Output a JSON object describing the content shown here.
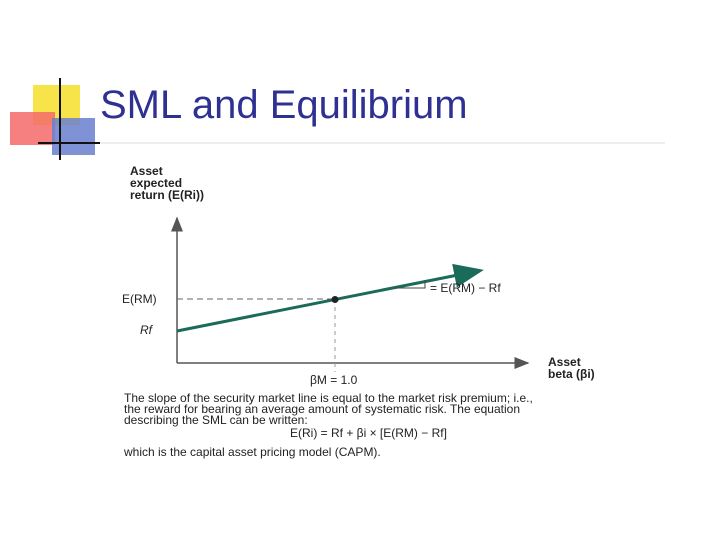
{
  "title": "SML and Equilibrium",
  "diagram": {
    "y_axis_label": [
      "Asset",
      "expected",
      "return (E(Ri))"
    ],
    "x_axis_label": [
      "Asset",
      "beta (βi)"
    ],
    "market_return_label": "E(RM)",
    "risk_free_label": "Rf",
    "slope_label": "= E(RM) − Rf",
    "market_beta_label": "βM = 1.0"
  },
  "caption": {
    "lines": [
      "The slope of the security market line is equal to the market risk premium; i.e.,",
      "the reward for bearing an average amount of systematic risk. The equation",
      "describing the SML can be written:"
    ],
    "equation": "E(Ri) = Rf + βi × [E(RM) − Rf]",
    "footer": "which is the capital asset pricing model (CAPM)."
  }
}
